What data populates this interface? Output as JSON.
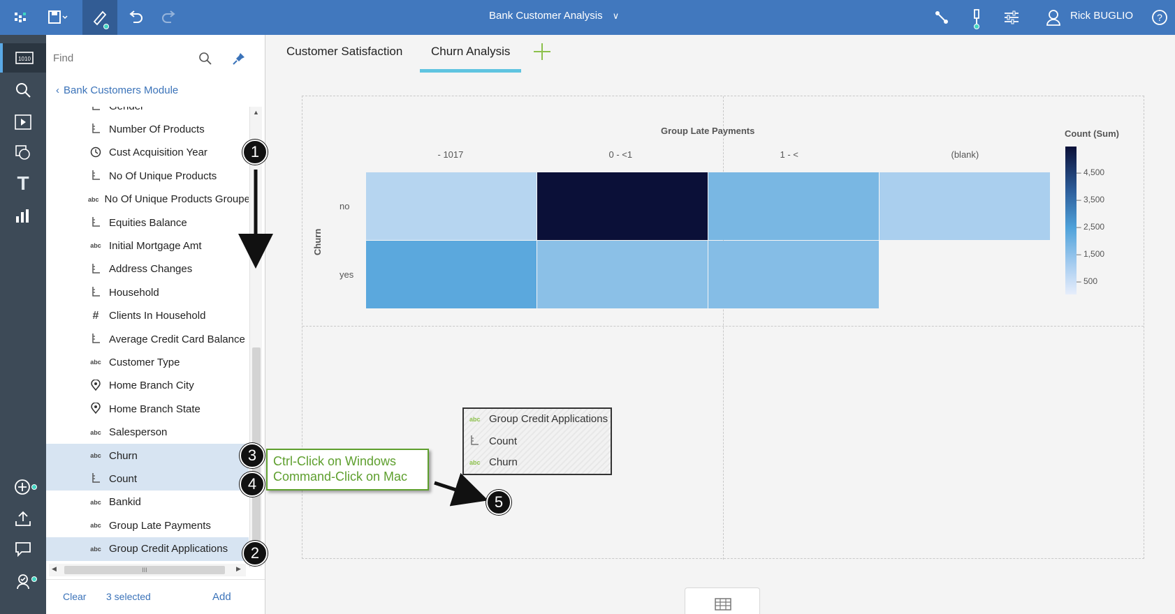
{
  "app": {
    "title": "Bank Customer Analysis",
    "user_name": "Rick BUGLIO"
  },
  "tabs": [
    {
      "label": "Customer Satisfaction",
      "active": false
    },
    {
      "label": "Churn Analysis",
      "active": true
    }
  ],
  "panel": {
    "search_placeholder": "Find",
    "back_label": "Bank Customers Module",
    "items": [
      {
        "icon": "measure",
        "label": "Gender",
        "selected": false
      },
      {
        "icon": "measure",
        "label": "Number Of Products",
        "selected": false
      },
      {
        "icon": "clock",
        "label": "Cust Acquisition Year",
        "selected": false
      },
      {
        "icon": "measure",
        "label": "No Of Unique Products",
        "selected": false
      },
      {
        "icon": "abc",
        "label": "No Of Unique Products Grouped",
        "selected": false
      },
      {
        "icon": "measure",
        "label": "Equities Balance",
        "selected": false
      },
      {
        "icon": "abc",
        "label": "Initial Mortgage Amt",
        "selected": false
      },
      {
        "icon": "measure",
        "label": "Address Changes",
        "selected": false
      },
      {
        "icon": "measure",
        "label": "Household",
        "selected": false
      },
      {
        "icon": "hash",
        "label": "Clients In Household",
        "selected": false
      },
      {
        "icon": "measure",
        "label": "Average Credit Card Balance",
        "selected": false
      },
      {
        "icon": "abc",
        "label": "Customer Type",
        "selected": false
      },
      {
        "icon": "pin",
        "label": "Home Branch City",
        "selected": false
      },
      {
        "icon": "pin",
        "label": "Home Branch State",
        "selected": false
      },
      {
        "icon": "abc",
        "label": "Salesperson",
        "selected": false
      },
      {
        "icon": "abc",
        "label": "Churn",
        "selected": true
      },
      {
        "icon": "measure",
        "label": "Count",
        "selected": true
      },
      {
        "icon": "abc",
        "label": "Bankid",
        "selected": false
      },
      {
        "icon": "abc",
        "label": "Group Late Payments",
        "selected": false
      },
      {
        "icon": "abc",
        "label": "Group Credit Applications",
        "selected": true
      }
    ],
    "icon_text": {
      "abc": "abc",
      "hash": "#"
    },
    "hscroll_grip": "III",
    "footer": {
      "clear_label": "Clear",
      "selected_label": "3 selected",
      "add_label": "Add"
    }
  },
  "chart_data": {
    "type": "heatmap",
    "title": "Group Late Payments",
    "xlabel": "Group Late Payments",
    "ylabel": "Churn",
    "x_categories": [
      "- 1017",
      "0 - <1",
      "1 - <",
      "(blank)"
    ],
    "y_categories": [
      "no",
      "yes"
    ],
    "values": [
      [
        800,
        5000,
        1800,
        1000
      ],
      [
        2300,
        1500,
        1600,
        null
      ]
    ],
    "legend_title": "Count (Sum)",
    "legend_ticks": [
      "4,500",
      "3,500",
      "2,500",
      "1,500",
      "500"
    ],
    "color_range": [
      "#e6edfb",
      "#0b1038"
    ]
  },
  "drop_zone": {
    "items": [
      {
        "icon": "abc",
        "label": "Group Credit Applications"
      },
      {
        "icon": "measure",
        "label": "Count"
      },
      {
        "icon": "abc",
        "label": "Churn"
      }
    ]
  },
  "annotation": {
    "callout_line1": "Ctrl-Click on Windows",
    "callout_line2": "Command-Click on Mac",
    "badges": [
      "1",
      "2",
      "3",
      "4",
      "5"
    ]
  }
}
